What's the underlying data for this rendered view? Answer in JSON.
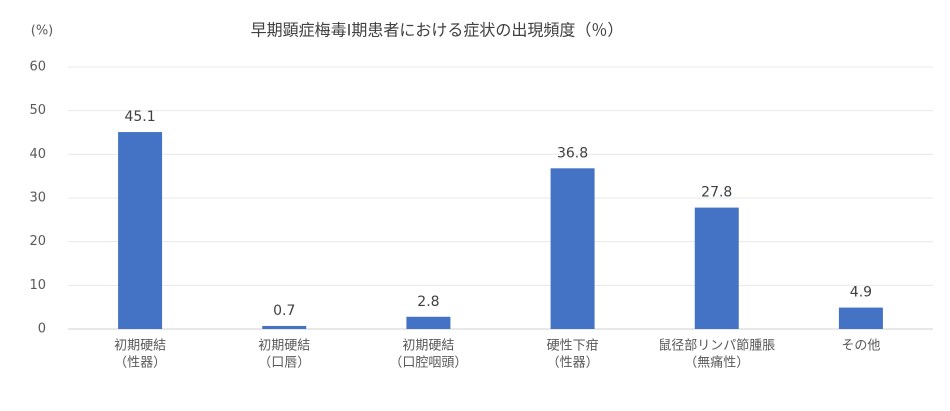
{
  "chart_data": {
    "type": "bar",
    "title": "早期顕症梅毒Ⅰ期患者における症状の出現頻度（％）",
    "y_label": "(%)",
    "categories": [
      [
        "初期硬結",
        "（性器）"
      ],
      [
        "初期硬結",
        "（口唇）"
      ],
      [
        "初期硬結",
        "（口腔咽頭）"
      ],
      [
        "硬性下疳",
        "（性器）"
      ],
      [
        "鼠径部リンパ節腫脹",
        "（無痛性）"
      ],
      [
        "その他"
      ]
    ],
    "values": [
      45.1,
      0.7,
      2.8,
      36.8,
      27.8,
      4.9
    ],
    "color": "#4472c4",
    "ylim": [
      0,
      60
    ],
    "yticks": [
      0,
      10,
      20,
      30,
      40,
      50,
      60
    ],
    "grid": true
  }
}
